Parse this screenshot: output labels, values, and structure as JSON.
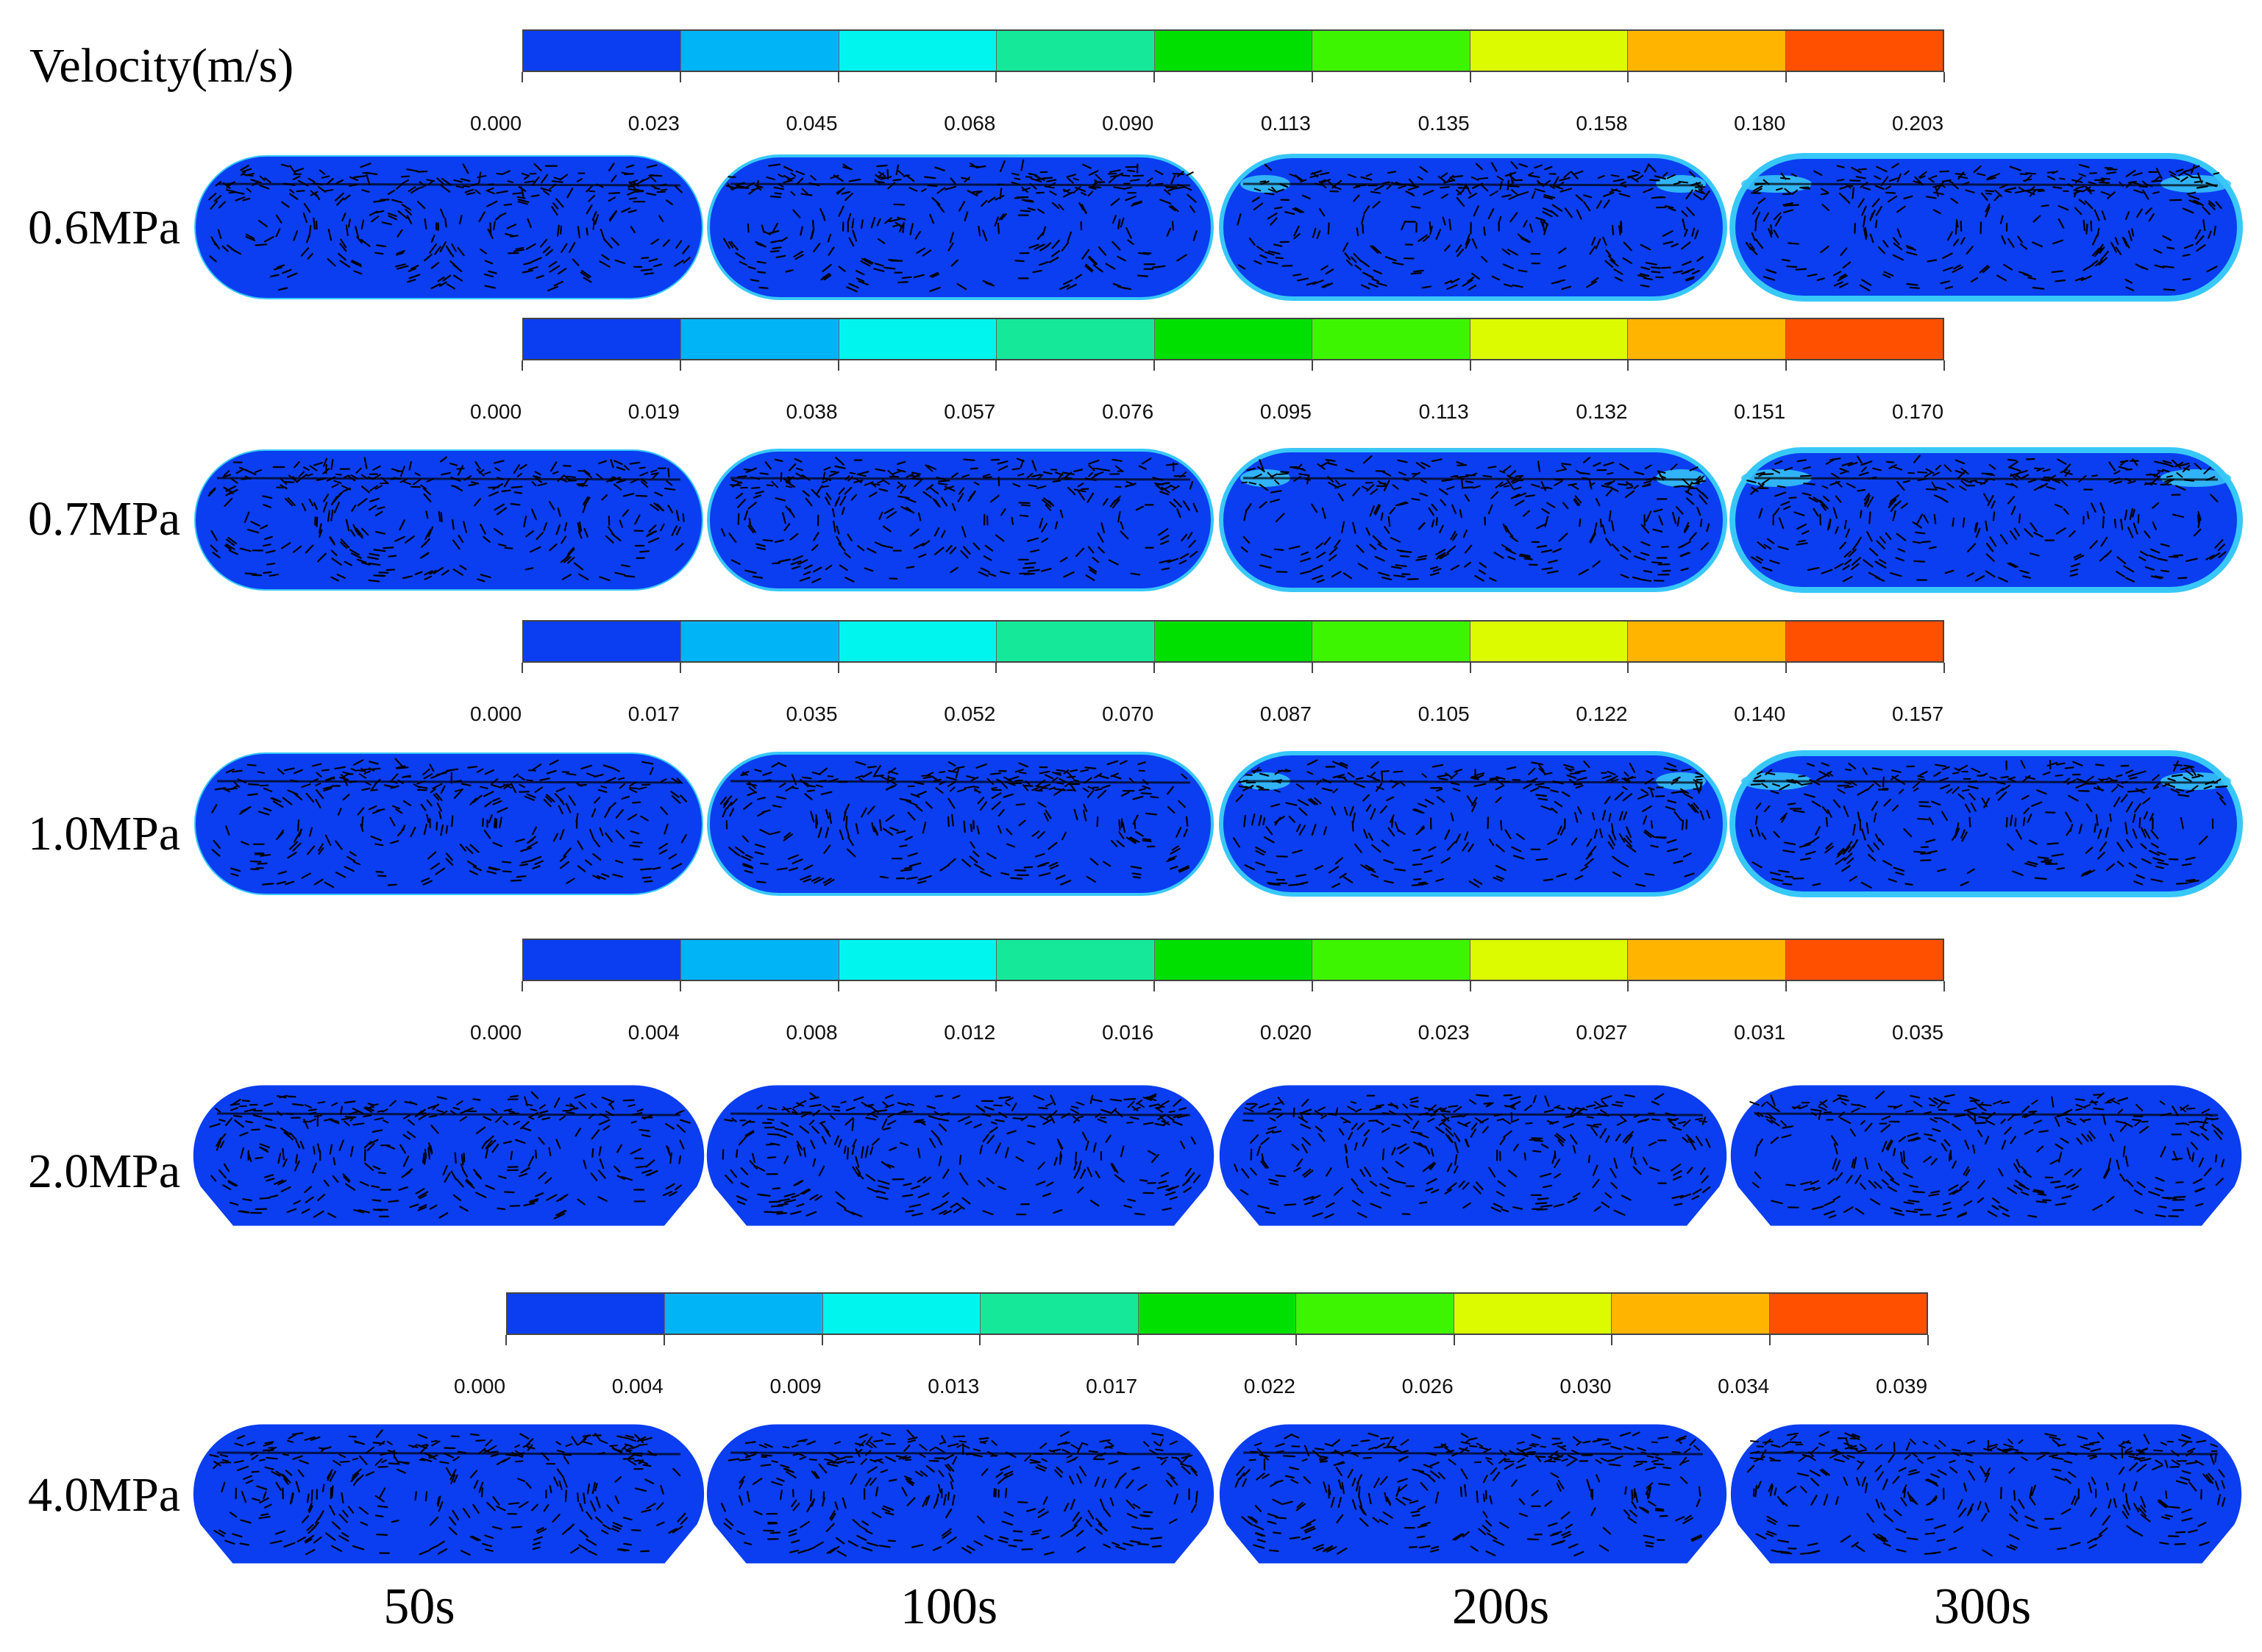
{
  "figure": {
    "legend_title": "Velocity(m/s)",
    "time_labels": [
      "50s",
      "100s",
      "200s",
      "300s"
    ],
    "colors": {
      "scale": [
        "#0a3ef0",
        "#00b4f5",
        "#00f5ee",
        "#16e89a",
        "#00e000",
        "#3ef500",
        "#dcfa00",
        "#ffb400",
        "#ff5000"
      ],
      "tank_fill": "#0a3ef0",
      "edge_cyan": "#38c8f8",
      "arrow": "#000000"
    },
    "rows": [
      {
        "pressure": "0.6MPa",
        "ticks": [
          "0.000",
          "0.023",
          "0.045",
          "0.068",
          "0.090",
          "0.113",
          "0.135",
          "0.158",
          "0.180",
          "0.203"
        ]
      },
      {
        "pressure": "0.7MPa",
        "ticks": [
          "0.000",
          "0.019",
          "0.038",
          "0.057",
          "0.076",
          "0.095",
          "0.113",
          "0.132",
          "0.151",
          "0.170"
        ]
      },
      {
        "pressure": "1.0MPa",
        "ticks": [
          "0.000",
          "0.017",
          "0.035",
          "0.052",
          "0.070",
          "0.087",
          "0.105",
          "0.122",
          "0.140",
          "0.157"
        ]
      },
      {
        "pressure": "2.0MPa",
        "ticks": [
          "0.000",
          "0.004",
          "0.008",
          "0.012",
          "0.016",
          "0.020",
          "0.023",
          "0.027",
          "0.031",
          "0.035"
        ]
      },
      {
        "pressure": "4.0MPa",
        "ticks": [
          "0.000",
          "0.004",
          "0.009",
          "0.013",
          "0.017",
          "0.022",
          "0.026",
          "0.030",
          "0.034",
          "0.039"
        ]
      }
    ]
  }
}
